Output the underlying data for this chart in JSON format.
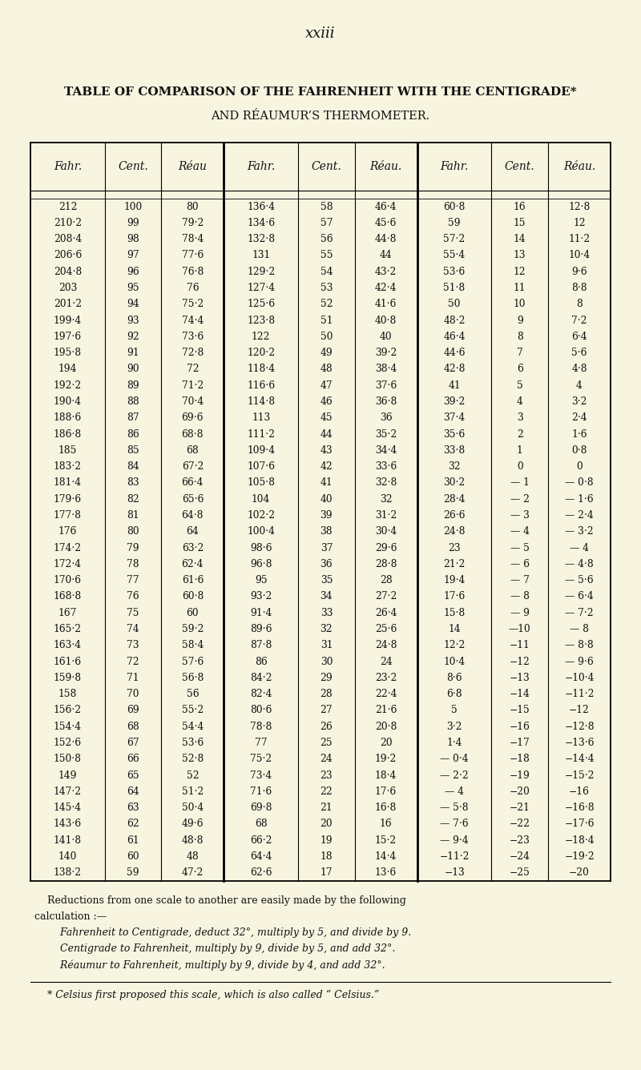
{
  "page_num": "xxiii",
  "title_line1": "TABLE OF COMPARISON OF THE FAHRENHEIT WITH THE CENTIGRADE*",
  "title_line2": "AND RÉAUMUR’S THERMOMETER.",
  "col_headers": [
    "Fahr.",
    "Cent.",
    "Réau",
    "Fahr.",
    "Cent.",
    "Réau.",
    "Fahr.",
    "Cent.",
    "Réau."
  ],
  "table_data": [
    [
      "212",
      "100",
      "80",
      "136·4",
      "58",
      "46·4",
      "60·8",
      "16",
      "12·8"
    ],
    [
      "210·2",
      "99",
      "79·2",
      "134·6",
      "57",
      "45·6",
      "59",
      "15",
      "12"
    ],
    [
      "208·4",
      "98",
      "78·4",
      "132·8",
      "56",
      "44·8",
      "57·2",
      "14",
      "11·2"
    ],
    [
      "206·6",
      "97",
      "77·6",
      "131",
      "55",
      "44",
      "55·4",
      "13",
      "10·4"
    ],
    [
      "204·8",
      "96",
      "76·8",
      "129·2",
      "54",
      "43·2",
      "53·6",
      "12",
      "9·6"
    ],
    [
      "203",
      "95",
      "76",
      "127·4",
      "53",
      "42·4",
      "51·8",
      "11",
      "8·8"
    ],
    [
      "201·2",
      "94",
      "75·2",
      "125·6",
      "52",
      "41·6",
      "50",
      "10",
      "8"
    ],
    [
      "199·4",
      "93",
      "74·4",
      "123·8",
      "51",
      "40·8",
      "48·2",
      "9",
      "7·2"
    ],
    [
      "197·6",
      "92",
      "73·6",
      "122",
      "50",
      "40",
      "46·4",
      "8",
      "6·4"
    ],
    [
      "195·8",
      "91",
      "72·8",
      "120·2",
      "49",
      "39·2",
      "44·6",
      "7",
      "5·6"
    ],
    [
      "194",
      "90",
      "72",
      "118·4",
      "48",
      "38·4",
      "42·8",
      "6",
      "4·8"
    ],
    [
      "192·2",
      "89",
      "71·2",
      "116·6",
      "47",
      "37·6",
      "41",
      "5",
      "4"
    ],
    [
      "190·4",
      "88",
      "70·4",
      "114·8",
      "46",
      "36·8",
      "39·2",
      "4",
      "3·2"
    ],
    [
      "188·6",
      "87",
      "69·6",
      "113",
      "45",
      "36",
      "37·4",
      "3",
      "2·4"
    ],
    [
      "186·8",
      "86",
      "68·8",
      "111·2",
      "44",
      "35·2",
      "35·6",
      "2",
      "1·6"
    ],
    [
      "185",
      "85",
      "68",
      "109·4",
      "43",
      "34·4",
      "33·8",
      "1",
      "0·8"
    ],
    [
      "183·2",
      "84",
      "67·2",
      "107·6",
      "42",
      "33·6",
      "32",
      "0",
      "0"
    ],
    [
      "181·4",
      "83",
      "66·4",
      "105·8",
      "41",
      "32·8",
      "30·2",
      "— 1",
      "— 0·8"
    ],
    [
      "179·6",
      "82",
      "65·6",
      "104",
      "40",
      "32",
      "28·4",
      "— 2",
      "— 1·6"
    ],
    [
      "177·8",
      "81",
      "64·8",
      "102·2",
      "39",
      "31·2",
      "26·6",
      "— 3",
      "— 2·4"
    ],
    [
      "176",
      "80",
      "64",
      "100·4",
      "38",
      "30·4",
      "24·8",
      "— 4",
      "— 3·2"
    ],
    [
      "174·2",
      "79",
      "63·2",
      "98·6",
      "37",
      "29·6",
      "23",
      "— 5",
      "— 4"
    ],
    [
      "172·4",
      "78",
      "62·4",
      "96·8",
      "36",
      "28·8",
      "21·2",
      "— 6",
      "— 4·8"
    ],
    [
      "170·6",
      "77",
      "61·6",
      "95",
      "35",
      "28",
      "19·4",
      "— 7",
      "— 5·6"
    ],
    [
      "168·8",
      "76",
      "60·8",
      "93·2",
      "34",
      "27·2",
      "17·6",
      "— 8",
      "— 6·4"
    ],
    [
      "167",
      "75",
      "60",
      "91·4",
      "33",
      "26·4",
      "15·8",
      "— 9",
      "— 7·2"
    ],
    [
      "165·2",
      "74",
      "59·2",
      "89·6",
      "32",
      "25·6",
      "14",
      "—10",
      "— 8"
    ],
    [
      "163·4",
      "73",
      "58·4",
      "87·8",
      "31",
      "24·8",
      "12·2",
      "−11",
      "— 8·8"
    ],
    [
      "161·6",
      "72",
      "57·6",
      "86",
      "30",
      "24",
      "10·4",
      "−12",
      "— 9·6"
    ],
    [
      "159·8",
      "71",
      "56·8",
      "84·2",
      "29",
      "23·2",
      "8·6",
      "−13",
      "−10·4"
    ],
    [
      "158",
      "70",
      "56",
      "82·4",
      "28",
      "22·4",
      "6·8",
      "−14",
      "−11·2"
    ],
    [
      "156·2",
      "69",
      "55·2",
      "80·6",
      "27",
      "21·6",
      "5",
      "−15",
      "−12"
    ],
    [
      "154·4",
      "68",
      "54·4",
      "78·8",
      "26",
      "20·8",
      "3·2",
      "−16",
      "−12·8"
    ],
    [
      "152·6",
      "67",
      "53·6",
      "77",
      "25",
      "20",
      "1·4",
      "−17",
      "−13·6"
    ],
    [
      "150·8",
      "66",
      "52·8",
      "75·2",
      "24",
      "19·2",
      "— 0·4",
      "−18",
      "−14·4"
    ],
    [
      "149",
      "65",
      "52",
      "73·4",
      "23",
      "18·4",
      "— 2·2",
      "−19",
      "−15·2"
    ],
    [
      "147·2",
      "64",
      "51·2",
      "71·6",
      "22",
      "17·6",
      "— 4",
      "−20",
      "−16"
    ],
    [
      "145·4",
      "63",
      "50·4",
      "69·8",
      "21",
      "16·8",
      "— 5·8",
      "−21",
      "−16·8"
    ],
    [
      "143·6",
      "62",
      "49·6",
      "68",
      "20",
      "16",
      "— 7·6",
      "−22",
      "−17·6"
    ],
    [
      "141·8",
      "61",
      "48·8",
      "66·2",
      "19",
      "15·2",
      "— 9·4",
      "−23",
      "−18·4"
    ],
    [
      "140",
      "60",
      "48",
      "64·4",
      "18",
      "14·4",
      "−11·2",
      "−24",
      "−19·2"
    ],
    [
      "138·2",
      "59",
      "47·2",
      "62·6",
      "17",
      "13·6",
      "−13",
      "−25",
      "−20"
    ]
  ],
  "footer_lines": [
    [
      "normal",
      "    Reductions from one scale to another are easily made by the following"
    ],
    [
      "normal",
      "calculation :—"
    ],
    [
      "italic",
      "        Fahrenheit to Centigrade, deduct 32°, multiply by 5, and divide by 9."
    ],
    [
      "italic",
      "        Centigrade to Fahrenheit, multiply by 9, divide by 5, and add 32°."
    ],
    [
      "italic",
      "        Réaumur to Fahrenheit, multiply by 9, divide by 4, and add 32°."
    ]
  ],
  "footnote": "    * Celsius first proposed this scale, which is also called “ Celsius.”",
  "bg_color": "#f7f4e0",
  "text_color": "#111111"
}
